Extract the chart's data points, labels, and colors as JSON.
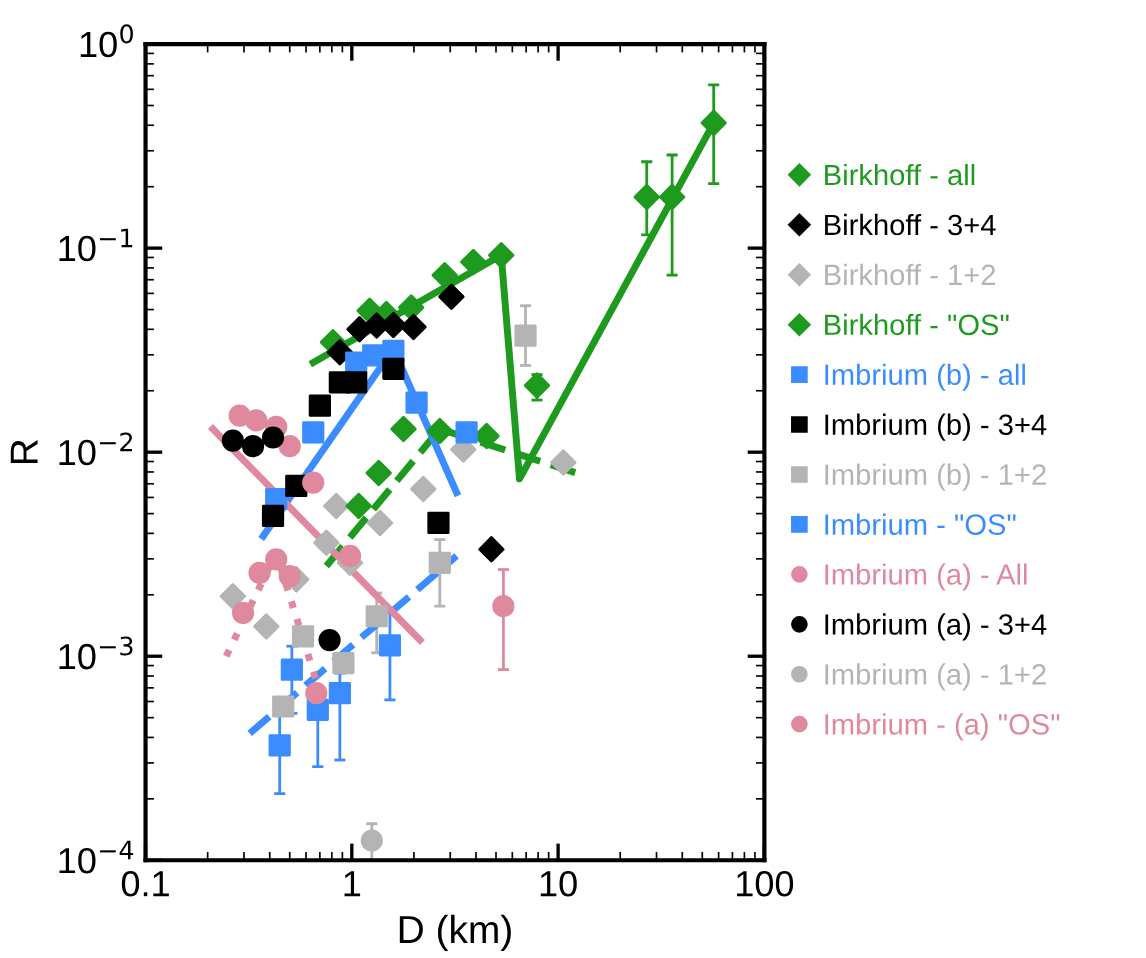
{
  "chart_data": {
    "type": "scatter",
    "xlabel": "D (km)",
    "ylabel": "R",
    "log": "xy",
    "legend": "right",
    "grid": false,
    "xlim": [
      0.1,
      100
    ],
    "ylim": [
      0.0001,
      1
    ],
    "xticks": [
      0.1,
      1,
      10,
      100
    ],
    "yticks": [
      {
        "value": 0.0001,
        "label": "10$^{−4}$"
      },
      {
        "value": 0.001,
        "label": "10$^{−3}$"
      },
      {
        "value": 0.01,
        "label": "10$^{−2}$"
      },
      {
        "value": 0.1,
        "label": "10$^{−1}$"
      },
      {
        "value": 1,
        "label": "10$^{0}$"
      }
    ],
    "series": [
      {
        "name": "Birkhoff - all",
        "marker": "diamond",
        "color": "#1e9a1e",
        "x": [
          0.81,
          1.22,
          1.47,
          1.94,
          2.82,
          3.88,
          5.3,
          7.9,
          26.9,
          35.7,
          56.8
        ],
        "values": [
          0.0346,
          0.0493,
          0.0475,
          0.0512,
          0.0736,
          0.0855,
          0.0923,
          0.0212,
          0.178,
          0.178,
          0.411
        ],
        "errors": [
          null,
          null,
          null,
          null,
          null,
          null,
          null,
          [
            0.018,
            0.024
          ],
          [
            0.116,
            0.265
          ],
          [
            0.0737,
            0.286
          ],
          [
            0.207,
            0.631
          ]
        ]
      },
      {
        "name": "Birkhoff - 3+4",
        "marker": "diamond",
        "color": "#000000",
        "x": [
          0.875,
          1.09,
          1.32,
          1.59,
          1.99,
          3.04,
          4.75
        ],
        "values": [
          0.0309,
          0.04,
          0.0418,
          0.042,
          0.0411,
          0.0578,
          0.00334
        ]
      },
      {
        "name": "Birkhoff - 1+2",
        "marker": "diamond",
        "color": "#b4b4b4",
        "x": [
          0.265,
          0.385,
          0.538,
          0.753,
          0.84,
          0.98,
          1.37,
          2.22,
          3.47,
          10.6
        ],
        "values": [
          0.00197,
          0.0014,
          0.00238,
          0.0036,
          0.00545,
          0.00287,
          0.0045,
          0.0066,
          0.0103,
          0.0089
        ]
      },
      {
        "name": "Birkhoff - \"OS\"",
        "marker": "diamond",
        "color": "#1e9a1e",
        "x": [
          1.08,
          1.35,
          1.78,
          2.67,
          4.5
        ],
        "values": [
          0.00545,
          0.0079,
          0.013,
          0.0127,
          0.012
        ]
      },
      {
        "name": "Imbrium (b) - all",
        "marker": "square",
        "color": "#3a8cff",
        "x": [
          0.43,
          0.65,
          1.05,
          1.27,
          1.59,
          2.06,
          3.6
        ],
        "values": [
          0.00588,
          0.0125,
          0.0275,
          0.0298,
          0.0314,
          0.0175,
          0.0125
        ]
      },
      {
        "name": "Imbrium (b) - 3+4",
        "marker": "square",
        "color": "#000000",
        "x": [
          0.415,
          0.538,
          0.7,
          0.875,
          1.05,
          1.59,
          2.63
        ],
        "values": [
          0.00487,
          0.00683,
          0.0169,
          0.022,
          0.022,
          0.0256,
          0.0045
        ]
      },
      {
        "name": "Imbrium (b) - 1+2",
        "marker": "square",
        "color": "#b4b4b4",
        "x": [
          0.465,
          0.58,
          0.91,
          1.32,
          2.67,
          6.95
        ],
        "values": [
          0.000567,
          0.00125,
          0.000925,
          0.00157,
          0.00287,
          0.0373
        ],
        "errors": [
          null,
          null,
          null,
          [
            0.00104,
            0.00204
          ],
          [
            0.00176,
            0.00373
          ],
          [
            0.0266,
            0.0522
          ]
        ]
      },
      {
        "name": "Imbrium - \"OS\"",
        "marker": "square",
        "color": "#3a8cff",
        "x": [
          0.447,
          0.512,
          0.684,
          0.875,
          1.53
        ],
        "values": [
          0.000366,
          0.000859,
          0.000546,
          0.000659,
          0.00113
        ],
        "errors": [
          [
            0.000212,
            0.000612
          ],
          [
            0.000525,
            0.00112
          ],
          [
            0.000288,
            0.000711
          ],
          [
            0.00031,
            0.000826
          ],
          [
            0.000611,
            0.00163
          ]
        ]
      },
      {
        "name": "Imbrium (a) - All",
        "marker": "circle",
        "color": "#e0899e",
        "x": [
          0.286,
          0.344,
          0.43,
          0.5,
          0.65,
          0.98,
          5.43
        ],
        "values": [
          0.0151,
          0.0143,
          0.0133,
          0.0107,
          0.0071,
          0.0031,
          0.00176
        ],
        "errors": [
          null,
          null,
          null,
          null,
          null,
          null,
          [
            0.00086,
            0.00266
          ]
        ]
      },
      {
        "name": "Imbrium (a) - 3+4",
        "marker": "circle",
        "color": "#000000",
        "x": [
          0.265,
          0.332,
          0.415,
          0.78
        ],
        "values": [
          0.0114,
          0.0107,
          0.0118,
          0.0012
        ]
      },
      {
        "name": "Imbrium (a) - 1+2",
        "marker": "circle",
        "color": "#b4b4b4",
        "x": [
          1.25
        ],
        "values": [
          0.000125
        ],
        "errors": [
          [
            0.0001,
            0.000151
          ]
        ]
      },
      {
        "name": "Imbrium - (a) \"OS\"",
        "marker": "circle",
        "color": "#e0899e",
        "x": [
          0.297,
          0.357,
          0.43,
          0.5,
          0.673
        ],
        "values": [
          0.00163,
          0.00256,
          0.00298,
          0.00247,
          0.000659
        ]
      },
      {
        "type": "line",
        "line_style": "solid",
        "color": "#1e9a1e",
        "x": [
          0.65,
          5.3,
          6.5,
          56.8
        ],
        "values": [
          0.0275,
          0.0923,
          0.0074,
          0.411
        ]
      },
      {
        "type": "line",
        "line_style": "dashed",
        "color": "#1e9a1e",
        "x": [
          0.753,
          2.67,
          12.3
        ],
        "values": [
          0.00277,
          0.013,
          0.0079
        ]
      },
      {
        "type": "line",
        "line_style": "solid",
        "color": "#3a8cff",
        "x": [
          0.372,
          1.59,
          3.22
        ],
        "values": [
          0.00388,
          0.0321,
          0.00634
        ]
      },
      {
        "type": "line",
        "line_style": "dashed",
        "color": "#3a8cff",
        "x": [
          0.32,
          3.22
        ],
        "values": [
          0.000419,
          0.0031
        ]
      },
      {
        "type": "line",
        "line_style": "solid",
        "color": "#e0899e",
        "x": [
          0.212,
          2.14
        ],
        "values": [
          0.013,
          0.0012
        ]
      },
      {
        "type": "line",
        "line_style": "dotted",
        "color": "#e0899e",
        "x": [
          0.246,
          0.43,
          0.726
        ],
        "values": [
          0.001,
          0.00321,
          0.00059
        ]
      }
    ]
  }
}
